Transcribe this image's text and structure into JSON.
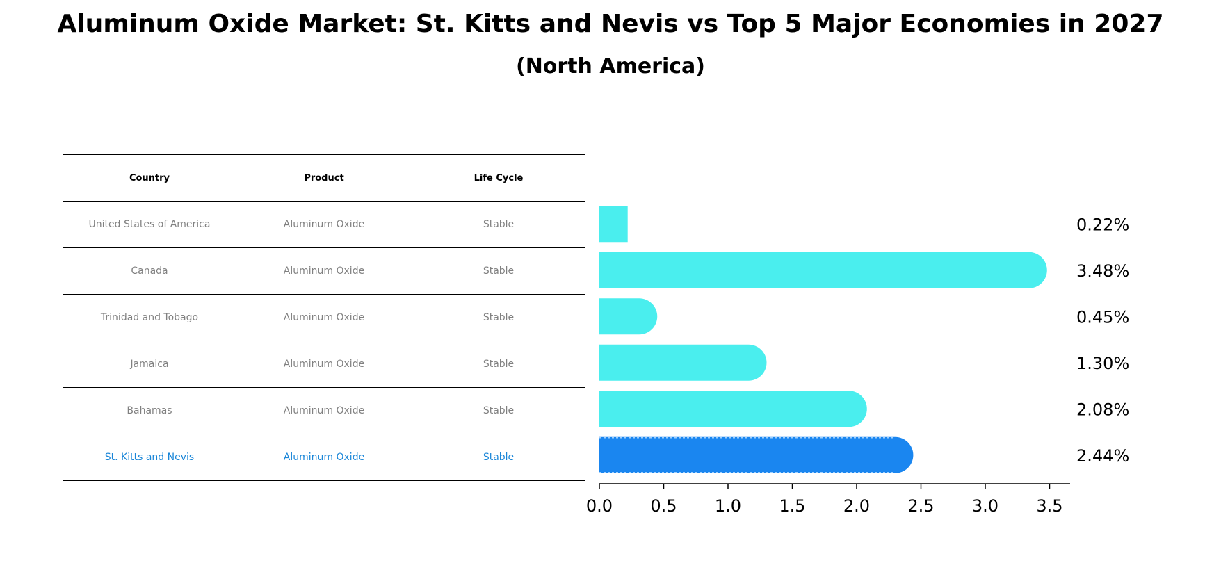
{
  "title": "Aluminum Oxide Market: St. Kitts and Nevis vs Top 5 Major Economies in 2027",
  "subtitle": "(North America)",
  "table": {
    "headers": [
      "Country",
      "Product",
      "Life Cycle"
    ],
    "rows": [
      {
        "country": "United States of America",
        "product": "Aluminum Oxide",
        "life_cycle": "Stable"
      },
      {
        "country": "Canada",
        "product": "Aluminum Oxide",
        "life_cycle": "Stable"
      },
      {
        "country": "Trinidad and Tobago",
        "product": "Aluminum Oxide",
        "life_cycle": "Stable"
      },
      {
        "country": "Jamaica",
        "product": "Aluminum Oxide",
        "life_cycle": "Stable"
      },
      {
        "country": "Bahamas",
        "product": "Aluminum Oxide",
        "life_cycle": "Stable"
      },
      {
        "country": "St. Kitts and Nevis",
        "product": "Aluminum Oxide",
        "life_cycle": "Stable"
      }
    ]
  },
  "chart_data": {
    "type": "bar",
    "orientation": "horizontal",
    "categories": [
      "United States of America",
      "Canada",
      "Trinidad and Tobago",
      "Jamaica",
      "Bahamas",
      "St. Kitts and Nevis"
    ],
    "values": [
      0.22,
      3.48,
      0.45,
      1.3,
      2.08,
      2.44
    ],
    "value_labels": [
      "0.22%",
      "3.48%",
      "0.45%",
      "1.30%",
      "2.08%",
      "2.44%"
    ],
    "highlight": "St. Kitts and Nevis",
    "xlim": [
      0,
      3.65
    ],
    "xticks": [
      0.0,
      0.5,
      1.0,
      1.5,
      2.0,
      2.5,
      3.0,
      3.5
    ],
    "xtick_labels": [
      "0.0",
      "0.5",
      "1.0",
      "1.5",
      "2.0",
      "2.5",
      "3.0",
      "3.5"
    ],
    "xlabel": "",
    "ylabel": "",
    "colors": {
      "bar": "#4aeeee",
      "highlight_bar": "#1a86f0",
      "highlight_text": "#1a86d8",
      "muted_text": "#808080"
    }
  }
}
